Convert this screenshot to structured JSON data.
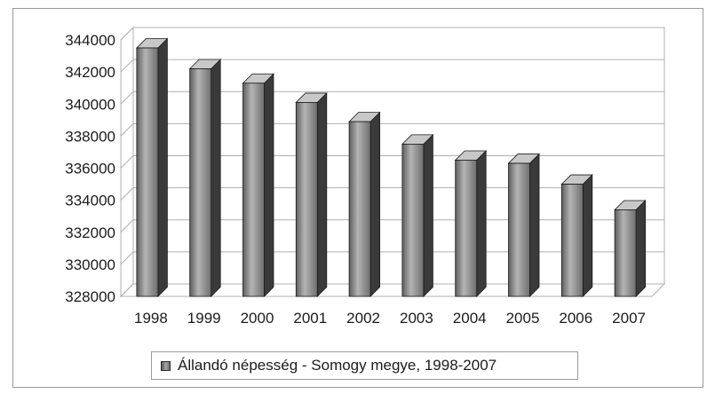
{
  "chart_data": {
    "type": "bar",
    "title": "",
    "xlabel": "",
    "ylabel": "",
    "categories": [
      "1998",
      "1999",
      "2000",
      "2001",
      "2002",
      "2003",
      "2004",
      "2005",
      "2006",
      "2007"
    ],
    "series": [
      {
        "name": "Állandó népesség - Somogy megye, 1998-2007",
        "values": [
          343500,
          342200,
          341300,
          340100,
          338900,
          337500,
          336500,
          336300,
          335000,
          333400
        ]
      }
    ],
    "ylim": [
      328000,
      344000
    ],
    "yticks": [
      "344000",
      "342000",
      "340000",
      "338000",
      "336000",
      "334000",
      "332000",
      "330000",
      "328000"
    ],
    "grid": true,
    "legend_position": "bottom",
    "style": "3d-column",
    "colors": {
      "bar_front": "#8c8c8c",
      "bar_side": "#3a3a3a",
      "bar_top": "#c8c8c8",
      "grid": "#b0b0b0"
    }
  }
}
